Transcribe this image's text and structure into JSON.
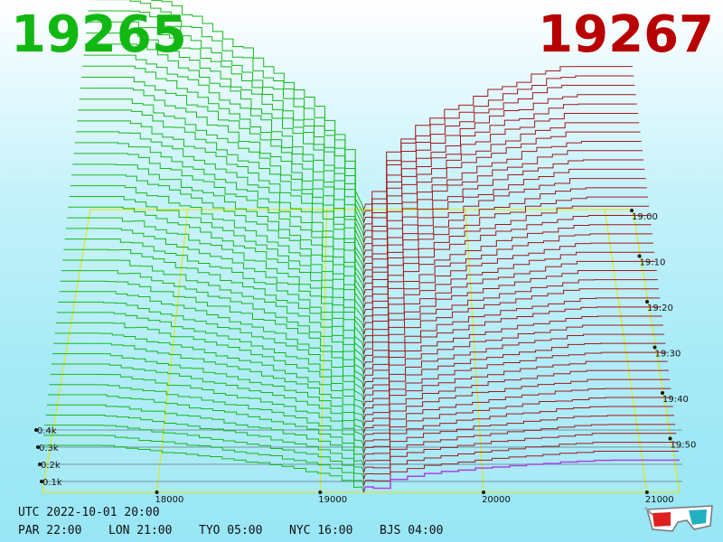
{
  "header": {
    "bid_price": "19265",
    "ask_price": "19267",
    "bid_color": "#12b812",
    "ask_color": "#b80000"
  },
  "footer": {
    "utc_label": "UTC 2022-10-01 20:00",
    "zones": [
      {
        "label": "PAR 22:00"
      },
      {
        "label": "LON 21:00"
      },
      {
        "label": "TYO 05:00"
      },
      {
        "label": "NYC 16:00"
      },
      {
        "label": "BJS 04:00"
      }
    ],
    "glasses_icon": "3d-glasses-icon"
  },
  "chart_data": {
    "type": "area",
    "title": "",
    "x_ticks": [
      "18000",
      "19000",
      "20000",
      "21000"
    ],
    "x_range": [
      17300,
      21200
    ],
    "mid_price": 19266,
    "volume_ticks": [
      "0.1k",
      "0.2k",
      "0.3k",
      "0.4k"
    ],
    "time_ticks": [
      "19:00",
      "19:10",
      "19:20",
      "19:30",
      "19:40",
      "19:50"
    ],
    "series": [
      {
        "side": "bid",
        "color": "#18b818",
        "price_start": 17300,
        "max_depth": 0.68,
        "steps": 26
      },
      {
        "side": "ask",
        "color": "#a01818",
        "price_end": 21200,
        "max_depth": 0.44,
        "steps": 18
      }
    ],
    "snapshot_count": 44,
    "grid": true
  }
}
